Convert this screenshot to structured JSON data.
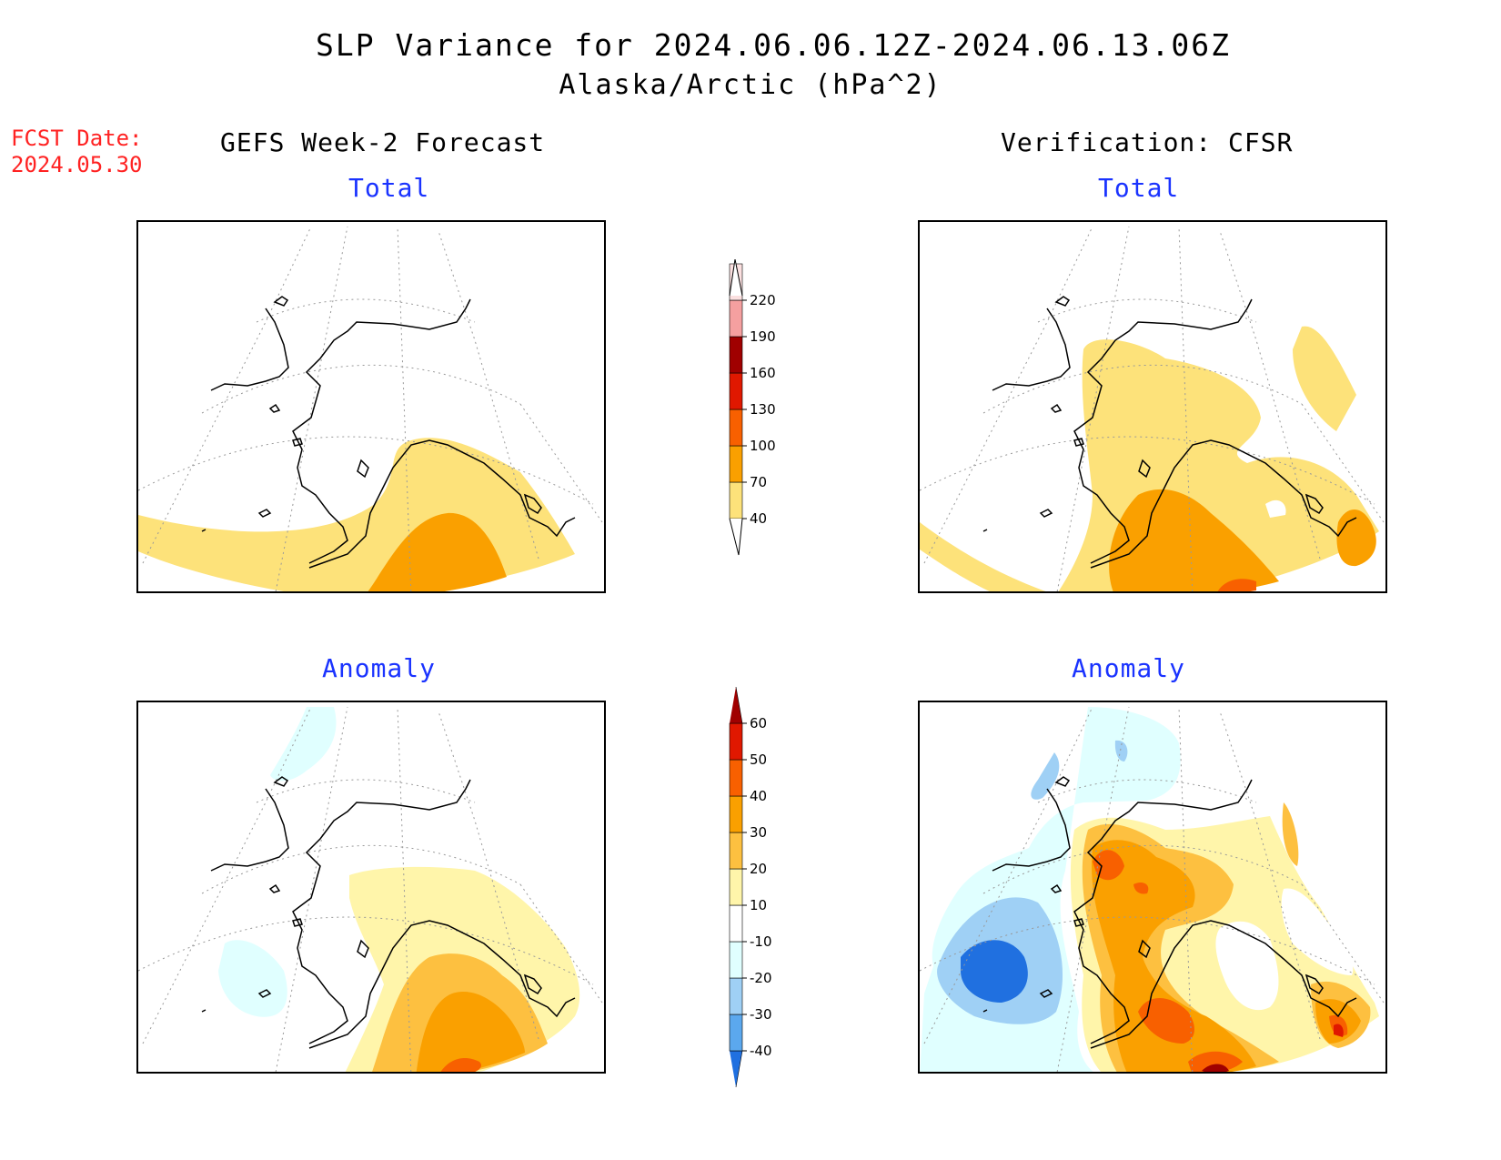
{
  "header": {
    "title": "SLP Variance for 2024.06.06.12Z-2024.06.13.06Z",
    "subtitle": "Alaska/Arctic (hPa^2)",
    "fcst_line1": "FCST Date:",
    "fcst_line2": "2024.05.30",
    "left_heading": "GEFS Week-2 Forecast",
    "right_heading": "Verification: CFSR"
  },
  "panels": {
    "top_left_title": "Total",
    "top_right_title": "Total",
    "bottom_left_title": "Anomaly",
    "bottom_right_title": "Anomaly"
  },
  "colors": {
    "title_text": "#000000",
    "fcst_date": "#ff2222",
    "panel_title": "#1a33ff",
    "c_pale_blue": "#e0ffff",
    "c_light_blue": "#9fd0f5",
    "c_mid_blue": "#5ba8ee",
    "c_blue": "#2070e0",
    "c_pale_yellow": "#fff5aa",
    "c_yellow": "#fde27a",
    "c_light_orange": "#fdc040",
    "c_orange": "#faa000",
    "c_dark_orange": "#f86000",
    "c_red": "#e01800",
    "c_dark_red": "#a00000",
    "c_pink": "#f5a0a0",
    "c_light_pink": "#fbe0e0"
  },
  "total_colorbar": {
    "labels": [
      "40",
      "70",
      "100",
      "130",
      "160",
      "190",
      "220"
    ],
    "colors": [
      "#fde27a",
      "#faa000",
      "#f86000",
      "#e01800",
      "#a00000",
      "#f5a0a0",
      "#fbe0e0"
    ]
  },
  "anomaly_colorbar": {
    "labels": [
      "-40",
      "-30",
      "-20",
      "-10",
      "10",
      "20",
      "30",
      "40",
      "50",
      "60"
    ],
    "colors": [
      "#2070e0",
      "#5ba8ee",
      "#9fd0f5",
      "#e0ffff",
      "#ffffff",
      "#fff5aa",
      "#fdc040",
      "#faa000",
      "#f86000",
      "#e01800",
      "#a00000"
    ]
  }
}
